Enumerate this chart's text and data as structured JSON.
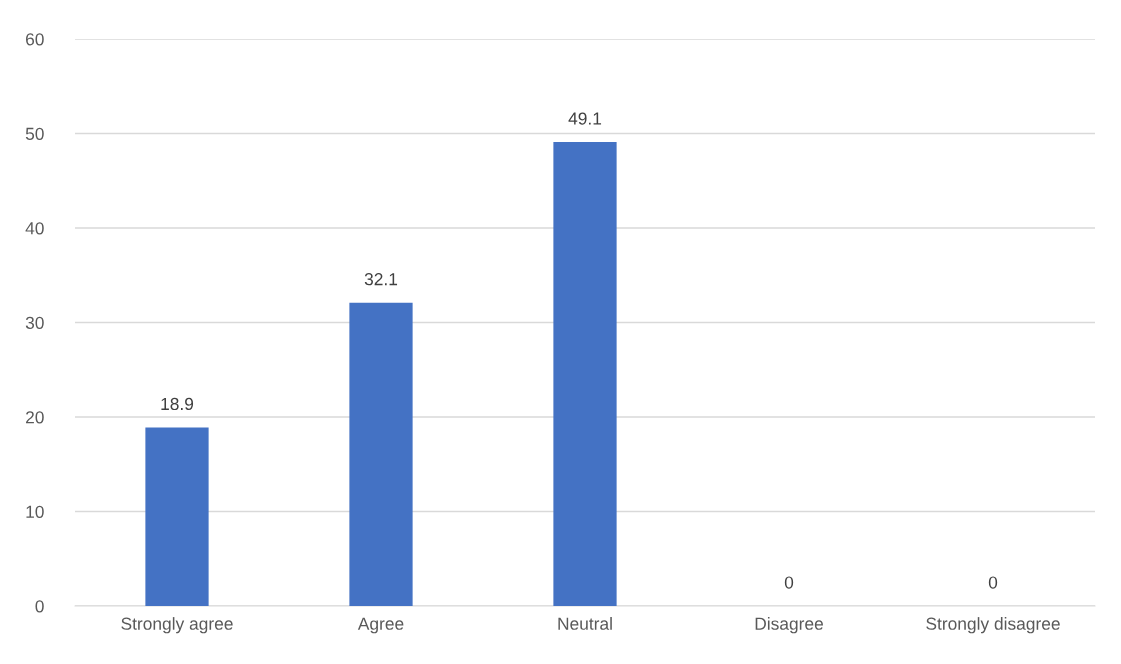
{
  "chart_data": {
    "type": "bar",
    "categories": [
      "Strongly agree",
      "Agree",
      "Neutral",
      "Disagree",
      "Strongly disagree"
    ],
    "values": [
      18.9,
      32.1,
      49.1,
      0,
      0
    ],
    "color": "#4472c4",
    "ylim": [
      0,
      60
    ],
    "yticks": [
      0,
      10,
      20,
      30,
      40,
      50,
      60
    ],
    "grid": "y",
    "data_labels": true,
    "legend": false
  }
}
